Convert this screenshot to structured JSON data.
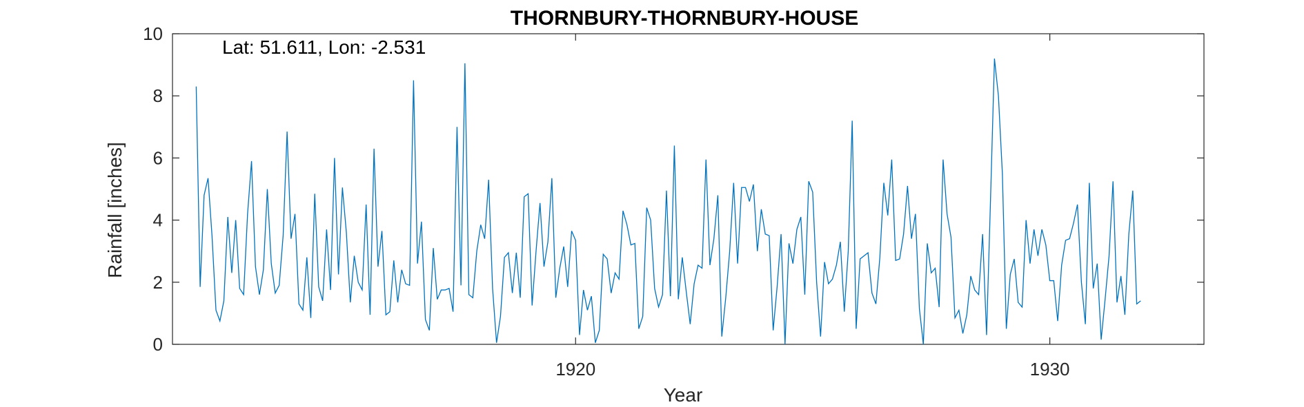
{
  "chart_data": {
    "type": "line",
    "title": "THORNBURY-THORNBURY-HOUSE",
    "xlabel": "Year",
    "ylabel": "Rainfall [inches]",
    "annotation": "Lat: 51.611, Lon: -2.531",
    "xlim": [
      1911.5,
      1933.25
    ],
    "ylim": [
      0,
      10
    ],
    "xticks": [
      1920,
      1930
    ],
    "xtick_labels": [
      "1920",
      "1930"
    ],
    "yticks": [
      0,
      2,
      4,
      6,
      8,
      10
    ],
    "ytick_labels": [
      "0",
      "2",
      "4",
      "6",
      "8",
      "10"
    ],
    "grid": false,
    "line_color": "#0072BD",
    "series": [
      {
        "x_start": 1912.0,
        "x_step": 0.08333,
        "values": [
          8.3,
          1.85,
          4.8,
          5.35,
          3.5,
          1.1,
          0.75,
          1.4,
          4.1,
          2.3,
          4.0,
          1.8,
          1.6,
          4.2,
          5.9,
          2.5,
          1.6,
          2.4,
          5.0,
          2.6,
          1.65,
          1.9,
          3.5,
          6.85,
          3.4,
          4.2,
          1.3,
          1.1,
          2.8,
          0.85,
          4.85,
          1.85,
          1.4,
          3.7,
          1.75,
          6.0,
          2.25,
          5.05,
          3.6,
          1.35,
          2.85,
          2.0,
          1.75,
          4.5,
          0.95,
          6.3,
          2.5,
          3.65,
          0.95,
          1.05,
          2.7,
          1.35,
          2.4,
          1.95,
          1.9,
          8.5,
          2.6,
          3.95,
          0.8,
          0.45,
          3.1,
          1.45,
          1.75,
          1.75,
          1.8,
          1.05,
          7.0,
          1.9,
          9.05,
          1.6,
          1.5,
          3.0,
          3.85,
          3.4,
          5.3,
          1.8,
          0.05,
          0.9,
          2.8,
          2.95,
          1.65,
          2.95,
          1.5,
          4.75,
          4.85,
          1.25,
          3.0,
          4.55,
          2.5,
          3.3,
          5.35,
          1.5,
          2.45,
          3.15,
          1.85,
          3.65,
          3.35,
          0.3,
          1.75,
          1.1,
          1.55,
          0.05,
          0.45,
          2.9,
          2.75,
          1.65,
          2.3,
          2.1,
          4.3,
          3.85,
          3.2,
          3.25,
          0.5,
          0.9,
          4.4,
          4.0,
          1.8,
          1.2,
          1.6,
          4.95,
          1.55,
          6.4,
          1.45,
          2.8,
          1.7,
          0.65,
          1.95,
          2.55,
          2.45,
          5.95,
          2.55,
          3.4,
          4.8,
          0.25,
          1.5,
          3.0,
          5.2,
          2.6,
          5.05,
          5.05,
          4.6,
          5.15,
          3.0,
          4.35,
          3.55,
          3.5,
          0.45,
          1.85,
          3.55,
          0.0,
          3.25,
          2.6,
          3.7,
          4.1,
          1.6,
          5.25,
          4.9,
          2.0,
          0.25,
          2.65,
          1.95,
          2.1,
          2.55,
          3.3,
          1.05,
          3.0,
          7.2,
          0.5,
          2.75,
          2.85,
          2.95,
          1.65,
          1.3,
          2.8,
          5.2,
          4.15,
          5.95,
          2.7,
          2.75,
          3.55,
          5.1,
          3.4,
          4.2,
          1.15,
          0.0,
          3.25,
          2.3,
          2.45,
          1.2,
          5.95,
          4.2,
          3.45,
          0.85,
          1.1,
          0.35,
          0.95,
          2.2,
          1.75,
          1.6,
          3.55,
          0.3,
          4.65,
          9.2,
          8.0,
          5.5,
          0.5,
          2.25,
          2.75,
          1.35,
          1.2,
          4.0,
          2.6,
          3.7,
          2.85,
          3.7,
          3.2,
          2.05,
          2.05,
          0.75,
          2.55,
          3.35,
          3.4,
          3.9,
          4.5,
          2.0,
          0.65,
          5.2,
          1.8,
          2.6,
          0.15,
          1.45,
          2.85,
          5.25,
          1.35,
          2.2,
          0.95,
          3.55,
          4.95,
          1.3,
          1.4
        ]
      }
    ]
  }
}
